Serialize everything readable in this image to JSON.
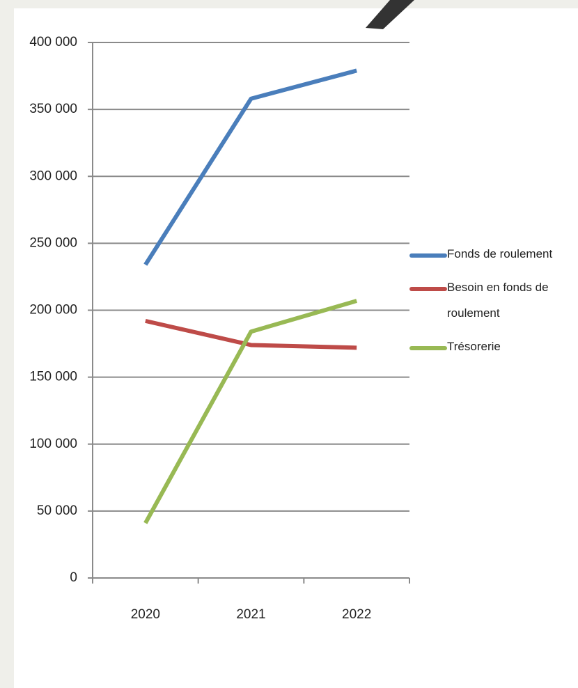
{
  "chart_data": {
    "type": "line",
    "categories": [
      "2020",
      "2021",
      "2022"
    ],
    "series": [
      {
        "name": "Fonds de roulement",
        "color": "#4a7ebb",
        "values": [
          234000,
          358000,
          379000
        ]
      },
      {
        "name": "Besoin en fonds de roulement",
        "color": "#be4b48",
        "values": [
          192000,
          174000,
          172000
        ]
      },
      {
        "name": "Trésorerie",
        "color": "#98b954",
        "values": [
          41000,
          184000,
          207000
        ]
      }
    ],
    "ylim": [
      0,
      400000
    ],
    "yticks": [
      0,
      {
        "value": 50000,
        "label": "50 000"
      },
      {
        "value": 100000,
        "label": "100 000"
      },
      {
        "value": 150000,
        "label": "150 000"
      },
      {
        "value": 200000,
        "label": "200 000"
      },
      {
        "value": 250000,
        "label": "250 000"
      },
      {
        "value": 300000,
        "label": "300 000"
      },
      {
        "value": 350000,
        "label": "350 000"
      },
      {
        "value": 400000,
        "label": "400 000"
      }
    ],
    "grid": true,
    "legend": "right"
  }
}
